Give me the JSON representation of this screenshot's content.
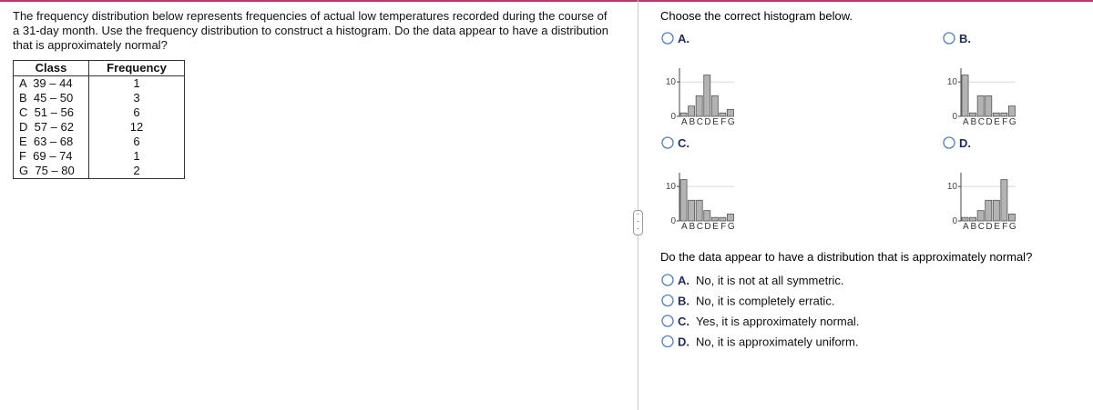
{
  "problem": {
    "text": "The frequency distribution below represents frequencies of actual low temperatures recorded during the course of a 31-day month. Use the frequency distribution to construct a histogram. Do the data appear to have a distribution that is approximately normal?",
    "table": {
      "headers": [
        "Class",
        "Frequency"
      ],
      "rows": [
        [
          "A  39 – 44",
          "1"
        ],
        [
          "B  45 – 50",
          "3"
        ],
        [
          "C  51 – 56",
          "6"
        ],
        [
          "D  57 – 62",
          "12"
        ],
        [
          "E  63 – 68",
          "6"
        ],
        [
          "F  69 – 74",
          "1"
        ],
        [
          "G  75 – 80",
          "2"
        ]
      ]
    }
  },
  "histogram_question": {
    "prompt": "Choose the correct histogram below.",
    "options": [
      "A.",
      "B.",
      "C.",
      "D."
    ]
  },
  "chart_data": [
    {
      "type": "bar",
      "categories": [
        "A",
        "B",
        "C",
        "D",
        "E",
        "F",
        "G"
      ],
      "values": [
        1,
        3,
        6,
        12,
        6,
        1,
        2
      ],
      "ylim": [
        0,
        14
      ],
      "yticks": [
        0,
        10
      ],
      "color": "#b3b3b3"
    },
    {
      "type": "bar",
      "categories": [
        "A",
        "B",
        "C",
        "D",
        "E",
        "F",
        "G"
      ],
      "values": [
        12,
        1,
        6,
        6,
        1,
        1,
        3
      ],
      "ylim": [
        0,
        14
      ],
      "yticks": [
        0,
        10
      ],
      "color": "#b3b3b3"
    },
    {
      "type": "bar",
      "categories": [
        "A",
        "B",
        "C",
        "D",
        "E",
        "F",
        "G"
      ],
      "values": [
        12,
        6,
        6,
        3,
        1,
        1,
        2
      ],
      "ylim": [
        0,
        14
      ],
      "yticks": [
        0,
        10
      ],
      "color": "#b3b3b3"
    },
    {
      "type": "bar",
      "categories": [
        "A",
        "B",
        "C",
        "D",
        "E",
        "F",
        "G"
      ],
      "values": [
        1,
        1,
        3,
        6,
        6,
        12,
        2
      ],
      "ylim": [
        0,
        14
      ],
      "yticks": [
        0,
        10
      ],
      "color": "#b3b3b3"
    }
  ],
  "normal_question": {
    "prompt": "Do the data appear to have a distribution that is approximately normal?",
    "options": [
      {
        "letter": "A.",
        "text": "No, it is not at all symmetric."
      },
      {
        "letter": "B.",
        "text": "No, it is completely erratic."
      },
      {
        "letter": "C.",
        "text": "Yes, it is approximately normal."
      },
      {
        "letter": "D.",
        "text": "No, it is approximately uniform."
      }
    ]
  }
}
